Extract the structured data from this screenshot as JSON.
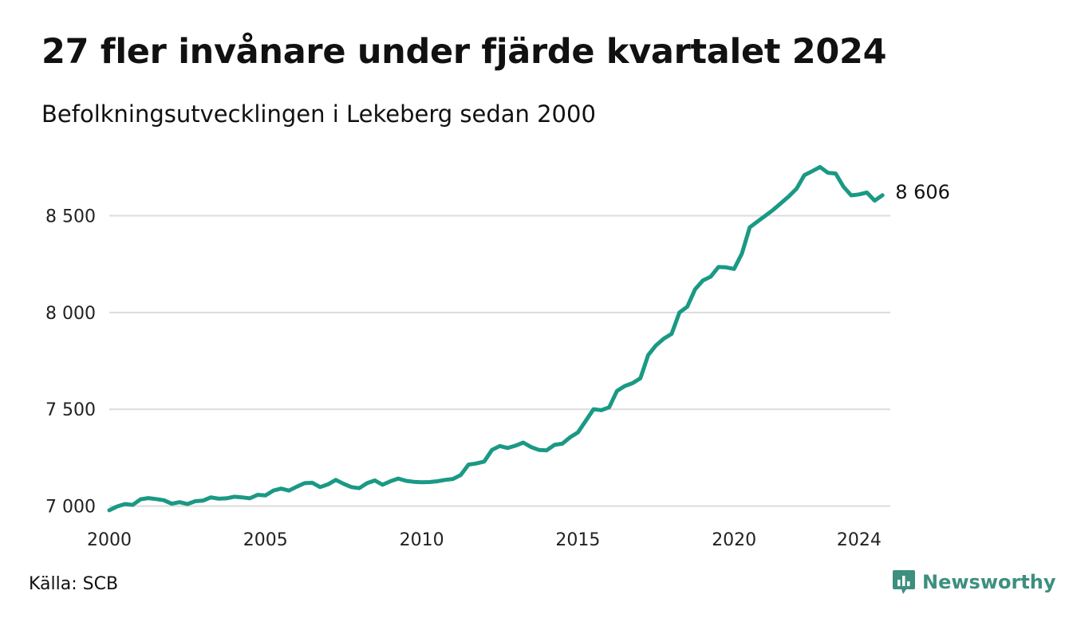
{
  "header": {
    "title": "27 fler invånare under fjärde kvartalet 2024",
    "subtitle": "Befolkningsutvecklingen i Lekeberg sedan 2000"
  },
  "footer": {
    "source": "Källa: SCB",
    "brand": "Newsworthy",
    "brand_icon": "newsworthy-logo-icon"
  },
  "chart_data": {
    "type": "line",
    "series_color": "#1a9985",
    "grid": true,
    "ylim": [
      6990,
      8770
    ],
    "xlim": [
      2000,
      2025
    ],
    "yticks": [
      7000,
      7500,
      8000,
      8500
    ],
    "ytick_labels": [
      "7 000",
      "7 500",
      "8 000",
      "8 500"
    ],
    "xticks": [
      2000,
      2005,
      2010,
      2015,
      2020,
      2024
    ],
    "xtick_labels": [
      "2000",
      "2005",
      "2010",
      "2015",
      "2020",
      "2024"
    ],
    "end_label": "8 606",
    "x": [
      2000.0,
      2000.25,
      2000.5,
      2000.75,
      2001.0,
      2001.25,
      2001.5,
      2001.75,
      2002.0,
      2002.25,
      2002.5,
      2002.75,
      2003.0,
      2003.25,
      2003.5,
      2003.75,
      2004.0,
      2004.25,
      2004.5,
      2004.75,
      2005.0,
      2005.25,
      2005.5,
      2005.75,
      2006.0,
      2006.25,
      2006.5,
      2006.75,
      2007.0,
      2007.25,
      2007.5,
      2007.75,
      2008.0,
      2008.25,
      2008.5,
      2008.75,
      2009.0,
      2009.25,
      2009.5,
      2009.75,
      2010.0,
      2010.25,
      2010.5,
      2010.75,
      2011.0,
      2011.25,
      2011.5,
      2011.75,
      2012.0,
      2012.25,
      2012.5,
      2012.75,
      2013.0,
      2013.25,
      2013.5,
      2013.75,
      2014.0,
      2014.25,
      2014.5,
      2014.75,
      2015.0,
      2015.25,
      2015.5,
      2015.75,
      2016.0,
      2016.25,
      2016.5,
      2016.75,
      2017.0,
      2017.25,
      2017.5,
      2017.75,
      2018.0,
      2018.25,
      2018.5,
      2018.75,
      2019.0,
      2019.25,
      2019.5,
      2019.75,
      2020.0,
      2020.25,
      2020.5,
      2020.75,
      2021.0,
      2021.25,
      2021.5,
      2021.75,
      2022.0,
      2022.25,
      2022.5,
      2022.75,
      2023.0,
      2023.25,
      2023.5,
      2023.75,
      2024.0,
      2024.25,
      2024.5,
      2024.75
    ],
    "values": [
      6978,
      6998,
      7010,
      7006,
      7035,
      7041,
      7036,
      7030,
      7012,
      7020,
      7010,
      7025,
      7028,
      7045,
      7038,
      7040,
      7048,
      7045,
      7040,
      7058,
      7055,
      7080,
      7090,
      7080,
      7100,
      7118,
      7120,
      7098,
      7112,
      7135,
      7115,
      7098,
      7092,
      7118,
      7132,
      7110,
      7128,
      7142,
      7130,
      7125,
      7123,
      7124,
      7128,
      7135,
      7140,
      7160,
      7214,
      7220,
      7230,
      7290,
      7310,
      7300,
      7312,
      7328,
      7305,
      7290,
      7288,
      7316,
      7322,
      7355,
      7380,
      7440,
      7500,
      7495,
      7510,
      7595,
      7620,
      7635,
      7660,
      7780,
      7830,
      7865,
      7890,
      8000,
      8030,
      8120,
      8165,
      8185,
      8235,
      8233,
      8225,
      8305,
      8440,
      8470,
      8500,
      8530,
      8565,
      8600,
      8640,
      8710,
      8730,
      8752,
      8722,
      8718,
      8650,
      8605,
      8610,
      8620,
      8578,
      8606
    ]
  }
}
